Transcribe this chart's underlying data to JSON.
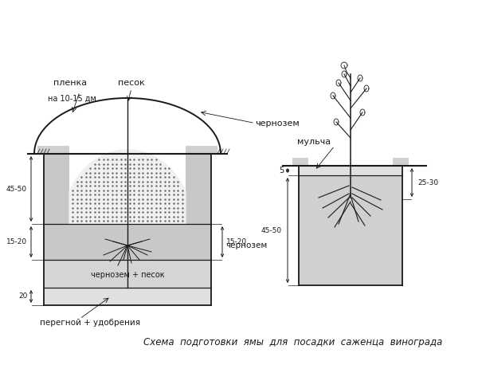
{
  "title": "Схема  подготовки  ямы  для  посадки  саженца  винограда",
  "bg_color": "#ffffff",
  "line_color": "#1a1a1a",
  "figsize": [
    6.0,
    4.58
  ],
  "dpi": 100,
  "labels": {
    "plenka": "пленка",
    "na_dm": "на 10-15 дм",
    "pesok": "песок",
    "chernozem": "чернозем",
    "mulcha": "мульча",
    "chernozem_pesok": "чернозем + песок",
    "peregunoy": "перегной + удобрения",
    "dim_45_50": "45-50",
    "dim_15_20": "15-20",
    "dim_20": "20",
    "dim_5": "5",
    "dim_25_30": "25-30"
  }
}
